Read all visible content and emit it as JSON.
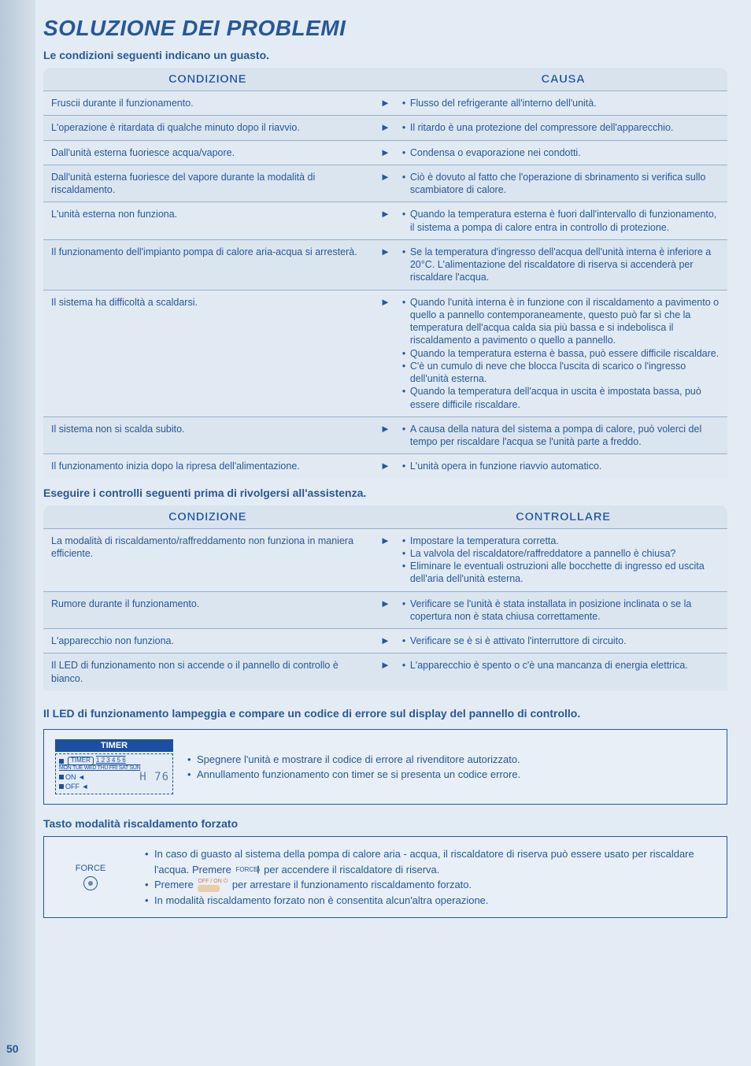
{
  "page_number": "50",
  "title": "SOLUZIONE DEI PROBLEMI",
  "section1": {
    "subtitle": "Le condizioni seguenti indicano un guasto.",
    "header_left": "CONDIZIONE",
    "header_right": "CAUSA",
    "rows": [
      {
        "left": "Fruscii durante il funzionamento.",
        "right": [
          "Flusso del refrigerante all'interno dell'unità."
        ]
      },
      {
        "left": "L'operazione è ritardata di qualche minuto dopo il riavvio.",
        "right": [
          "Il ritardo è una protezione del compressore dell'apparecchio."
        ]
      },
      {
        "left": "Dall'unità esterna fuoriesce acqua/vapore.",
        "right": [
          "Condensa o evaporazione nei condotti."
        ]
      },
      {
        "left": "Dall'unità esterna fuoriesce del vapore durante la modalità di riscaldamento.",
        "right": [
          "Ciò è dovuto al fatto che l'operazione di sbrinamento si verifica sullo scambiatore di calore."
        ]
      },
      {
        "left": "L'unità esterna non funziona.",
        "right": [
          "Quando la temperatura esterna è fuori dall'intervallo di funzionamento, il sistema a pompa di calore entra in controllo di protezione."
        ]
      },
      {
        "left": "Il funzionamento dell'impianto pompa di calore aria-acqua si arresterà.",
        "right": [
          "Se la temperatura d'ingresso dell'acqua dell'unità interna è inferiore a 20°C. L'alimentazione del riscaldatore di riserva si accenderà per riscaldare l'acqua."
        ]
      },
      {
        "left": "Il sistema ha difficoltà a scaldarsi.",
        "right": [
          "Quando l'unità interna è in funzione con il riscaldamento a pavimento o quello a pannello contemporaneamente, questo può far sì che la temperatura dell'acqua calda sia più bassa e si indebolisca il riscaldamento a pavimento o quello a pannello.",
          "Quando la temperatura esterna è bassa, può essere difficile riscaldare.",
          "C'è un cumulo di neve che blocca l'uscita di scarico o l'ingresso dell'unità esterna.",
          "Quando la temperatura dell'acqua in uscita è impostata bassa, può essere difficile riscaldare."
        ]
      },
      {
        "left": "Il sistema non si scalda subito.",
        "right": [
          "A causa della natura del sistema a pompa di calore, può volerci del tempo per riscaldare l'acqua se l'unità parte a freddo."
        ]
      },
      {
        "left": "Il funzionamento inizia dopo la ripresa dell'alimentazione.",
        "right": [
          "L'unità opera in funzione riavvio automatico."
        ]
      }
    ]
  },
  "section2": {
    "subtitle": "Eseguire i controlli seguenti prima di rivolgersi all'assistenza.",
    "header_left": "CONDIZIONE",
    "header_right": "CONTROLLARE",
    "rows": [
      {
        "left": "La modalità di riscaldamento/raffreddamento non funziona in maniera efficiente.",
        "right": [
          "Impostare la temperatura corretta.",
          "La valvola del riscaldatore/raffreddatore a pannello è chiusa?",
          "Eliminare le eventuali ostruzioni alle bocchette di ingresso ed uscita dell'aria dell'unità esterna."
        ]
      },
      {
        "left": "Rumore durante il funzionamento.",
        "right": [
          "Verificare se l'unità è stata installata in posizione inclinata o se la copertura non è stata chiusa correttamente."
        ]
      },
      {
        "left": "L'apparecchio non funziona.",
        "right": [
          "Verificare se è si è attivato l'interruttore di circuito."
        ]
      },
      {
        "left": "Il LED di funzionamento non si accende o il pannello di controllo è bianco.",
        "right": [
          "L'apparecchio è spento o c'è una mancanza di energia elettrica."
        ]
      }
    ]
  },
  "section3": {
    "note": "Il LED di funzionamento lampeggia e compare un codice di errore sul display del pannello di controllo.",
    "timer_label": "TIMER",
    "lcd": {
      "timer_badge": "TIMER",
      "nums": "1 2 3 4 5 6",
      "days": "MON TUE WED THU FRI SAT SUN",
      "on": "ON ◄",
      "off": "OFF ◄",
      "seg": "H 76"
    },
    "bullets": [
      "Spegnere l'unità e mostrare il codice di errore al rivenditore autorizzato.",
      "Annullamento funzionamento con timer se si presenta un codice errore."
    ]
  },
  "section4": {
    "subtitle": "Tasto modalità riscaldamento forzato",
    "force_label": "FORCE",
    "bullets_pre": "In caso di guasto al sistema della pompa di calore aria - acqua, il riscaldatore di riserva può essere usato per riscaldare l'acqua. Premere ",
    "bullets_post": " per accendere il riscaldatore di riserva.",
    "bullet2_pre": "Premere ",
    "bullet2_post": " per arrestare il funzionamento riscaldamento forzato.",
    "bullet3": "In modalità riscaldamento forzato non è consentita alcun'altra operazione.",
    "inline_force": "FORCE",
    "inline_offon": "OFF / ON ⏻"
  },
  "arrow": "►"
}
